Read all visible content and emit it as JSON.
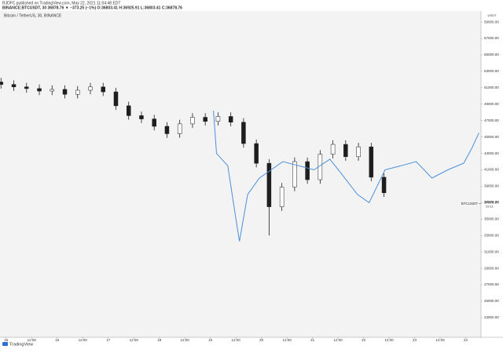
{
  "header": {
    "publisher": "RJDFC published on TradingView.com, May 22, 2021 11:04:48 EDT",
    "symbol_line": "BINANCE:BTCUSDT, 30  36878.76 ▼ −373.25 (−1%) O:36803.41 H:36925.91 L:36803.41 C:36878.76"
  },
  "chart_data": {
    "type": "candlestick",
    "title": "Bitcoin / TetherUS, 30, BINANCE",
    "candles": {
      "x": [
        14.9,
        15.15,
        15.4,
        15.65,
        15.9,
        16.15,
        16.4,
        16.65,
        16.9,
        17.15,
        17.4,
        17.65,
        17.9,
        18.15,
        18.4,
        18.65,
        18.9,
        19.15,
        19.4,
        19.65,
        19.9,
        20.15,
        20.4,
        20.65,
        20.9,
        21.15,
        21.4,
        21.65,
        21.9,
        22.15,
        22.4
      ],
      "open": [
        51700,
        51400,
        51100,
        50900,
        50600,
        50800,
        50200,
        50700,
        51100,
        50500,
        48800,
        47600,
        47200,
        46300,
        45400,
        46600,
        47400,
        46900,
        47500,
        46800,
        44200,
        41800,
        36500,
        38900,
        42000,
        39800,
        42900,
        44100,
        42600,
        43800,
        40100
      ],
      "high": [
        52200,
        51900,
        51600,
        51400,
        51300,
        51300,
        51200,
        51600,
        51600,
        51000,
        49300,
        48100,
        47700,
        46800,
        47100,
        47900,
        47900,
        48000,
        48000,
        47300,
        44700,
        42300,
        39400,
        42500,
        42500,
        43400,
        44600,
        44600,
        44300,
        44300,
        40600
      ],
      "low": [
        50900,
        50600,
        50400,
        50100,
        50100,
        49700,
        49700,
        50200,
        50000,
        48300,
        47100,
        46700,
        45800,
        44900,
        44900,
        46100,
        46400,
        46400,
        46300,
        43700,
        41300,
        33000,
        36000,
        38400,
        39300,
        39300,
        42400,
        42100,
        42100,
        39600,
        37700
      ],
      "close": [
        51400,
        51100,
        50900,
        50600,
        50800,
        50200,
        50700,
        51100,
        50500,
        48800,
        47600,
        47200,
        46300,
        45400,
        46600,
        47400,
        46900,
        47500,
        46800,
        44200,
        41800,
        36500,
        38900,
        42000,
        39800,
        42900,
        44100,
        42600,
        43800,
        40100,
        38200
      ],
      "color": "#1e1e1e"
    },
    "series": [
      {
        "color": "#4a8fd8",
        "x": [
          19.06,
          19.12,
          19.34,
          19.5,
          19.57,
          19.73,
          19.96,
          20.19,
          20.42,
          20.73,
          21.03,
          21.34,
          21.57,
          21.88,
          22.11,
          22.42,
          22.73,
          23.03,
          23.34,
          23.65,
          23.96,
          24.11,
          24.26
        ],
        "values": [
          48200,
          43000,
          41500,
          35000,
          32300,
          38000,
          40000,
          41000,
          42000,
          41500,
          41000,
          42300,
          40500,
          38000,
          37000,
          41000,
          41500,
          42000,
          40000,
          41000,
          41800,
          43500,
          45500
        ]
      }
    ],
    "xlim": [
      14.88,
      24.3
    ],
    "xticks": [
      15,
      {
        "value": 15.5,
        "label": "12:00"
      },
      16,
      {
        "value": 16.5,
        "label": "12:00"
      },
      17,
      {
        "value": 17.5,
        "label": "12:00"
      },
      18,
      {
        "value": 18.5,
        "label": "12:00"
      },
      19,
      {
        "value": 19.5,
        "label": "12:00"
      },
      20,
      {
        "value": 20.5,
        "label": "12:00"
      },
      21,
      {
        "value": 21.5,
        "label": "12:00"
      },
      22,
      {
        "value": 22.5,
        "label": "12:00"
      },
      23,
      {
        "value": 23.5,
        "label": "12:00"
      },
      24
    ],
    "ylim": [
      20600,
      60350
    ],
    "yticks": [
      {
        "value": 59000,
        "label": "59000.00"
      },
      {
        "value": 57000,
        "label": "57000.00"
      },
      {
        "value": 55000,
        "label": "55000.00"
      },
      {
        "value": 53000,
        "label": "53000.00"
      },
      {
        "value": 51000,
        "label": "51000.00"
      },
      {
        "value": 49000,
        "label": "49000.00"
      },
      {
        "value": 47000,
        "label": "47000.00"
      },
      {
        "value": 45000,
        "label": "45000.00"
      },
      {
        "value": 43000,
        "label": "43000.00"
      },
      {
        "value": 41000,
        "label": "41000.00"
      },
      {
        "value": 39000,
        "label": "39000.00"
      },
      {
        "value": 37000,
        "label": "37000.00"
      },
      {
        "value": 35000,
        "label": "35000.00"
      },
      {
        "value": 33000,
        "label": "33000.00"
      },
      {
        "value": 31000,
        "label": "31000.00"
      },
      {
        "value": 29000,
        "label": "29000.00"
      },
      {
        "value": 27000,
        "label": "27000.00"
      },
      {
        "value": 25000,
        "label": "25000.00"
      },
      {
        "value": 23000,
        "label": "23000.00"
      }
    ],
    "axis_unit": "USDT",
    "last_price": {
      "symbol": "BTCUSDT",
      "value": 36878.76,
      "label": "36878.76",
      "countdown": "29:11"
    }
  },
  "footer": {
    "brand": "TradingView"
  }
}
